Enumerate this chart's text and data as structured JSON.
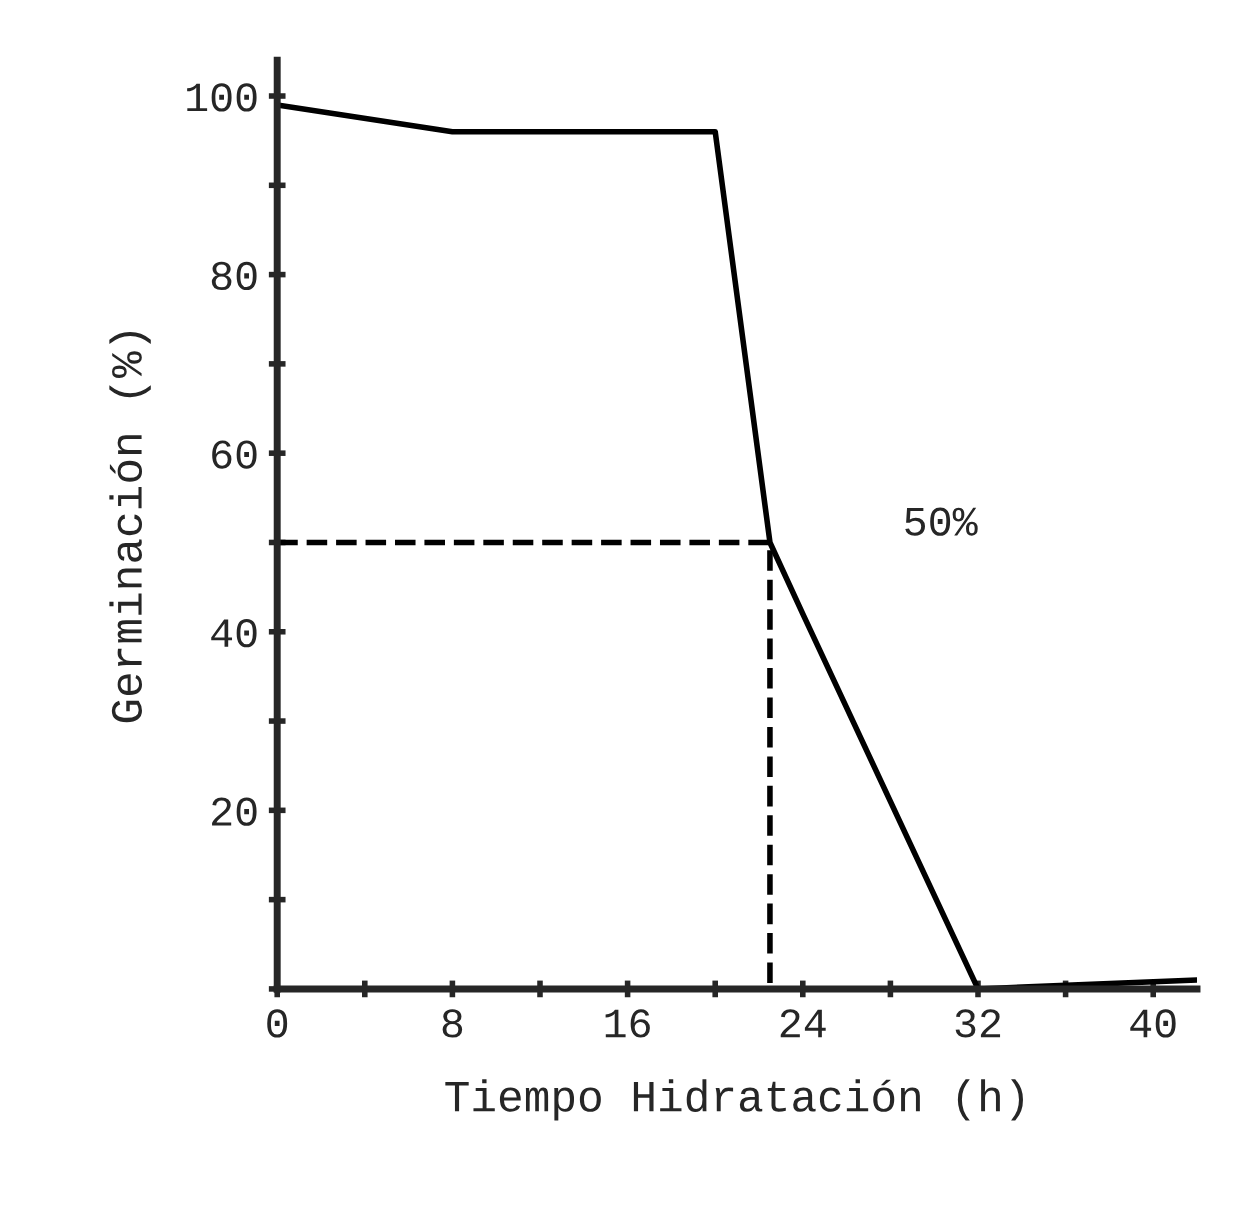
{
  "chart_data": {
    "type": "line",
    "xlabel": "Tiempo Hidratación (h)",
    "ylabel": "Germinación (%)",
    "xlim": [
      0,
      42
    ],
    "ylim": [
      0,
      104
    ],
    "xticks": [
      0,
      {
        "value": 4,
        "label": null
      },
      8,
      {
        "value": 12,
        "label": null
      },
      16,
      {
        "value": 20,
        "label": null
      },
      24,
      {
        "value": 28,
        "label": null
      },
      32,
      {
        "value": 36,
        "label": null
      },
      40
    ],
    "yticks": [
      {
        "value": 0,
        "label": null
      },
      {
        "value": 10,
        "label": null
      },
      20,
      {
        "value": 30,
        "label": null
      },
      40,
      {
        "value": 50,
        "label": null
      },
      60,
      {
        "value": 70,
        "label": null
      },
      80,
      {
        "value": 90,
        "label": null
      },
      100
    ],
    "series": [
      {
        "color": "#000000",
        "x": [
          0,
          8,
          20,
          22.5,
          24,
          32,
          42
        ],
        "values": [
          99,
          96,
          96,
          50,
          42,
          0,
          1
        ],
        "line_style": "solid"
      },
      {
        "type": "line",
        "color": "#000000",
        "x": [
          0,
          22.5,
          22.5
        ],
        "values": [
          50,
          50,
          0
        ],
        "line_style": "dashed"
      }
    ],
    "annotations": [
      "50%"
    ],
    "grid": false,
    "legend": false
  }
}
